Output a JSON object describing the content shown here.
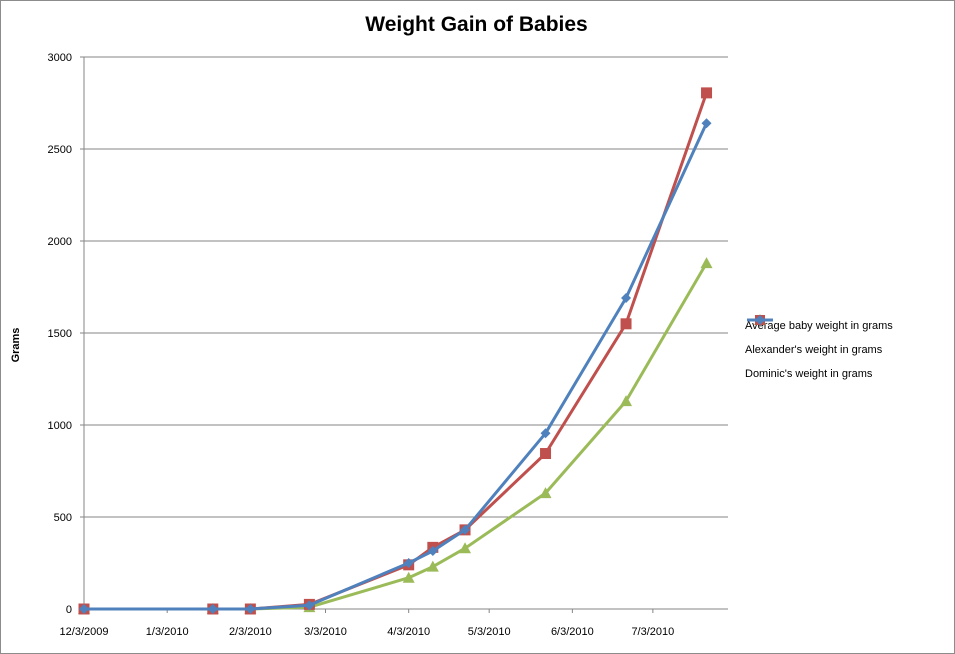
{
  "chart_data": {
    "type": "line",
    "title": "Weight Gain of Babies",
    "xlabel": "",
    "ylabel": "Grams",
    "ylim": [
      0,
      3000
    ],
    "y_ticks": [
      0,
      500,
      1000,
      1500,
      2000,
      2500,
      3000
    ],
    "x_ticks": [
      "12/3/2009",
      "1/3/2010",
      "2/3/2010",
      "3/3/2010",
      "4/3/2010",
      "5/3/2010",
      "6/3/2010",
      "7/3/2010"
    ],
    "x_range": [
      "2009-12-03",
      "2010-07-31"
    ],
    "grid": "horizontal",
    "legend_position": "right",
    "series": [
      {
        "name": "Average baby weight in grams",
        "color": "#9bbb59",
        "marker": "triangle",
        "points": [
          [
            "2009-12-03",
            0
          ],
          [
            "2010-01-20",
            0
          ],
          [
            "2010-02-03",
            0
          ],
          [
            "2010-02-25",
            10
          ],
          [
            "2010-04-03",
            170
          ],
          [
            "2010-04-12",
            230
          ],
          [
            "2010-04-24",
            330
          ],
          [
            "2010-05-24",
            630
          ],
          [
            "2010-06-23",
            1130
          ],
          [
            "2010-07-23",
            1880
          ]
        ]
      },
      {
        "name": "Alexander's weight in grams",
        "color": "#c0504d",
        "marker": "square",
        "points": [
          [
            "2009-12-03",
            0
          ],
          [
            "2010-01-20",
            0
          ],
          [
            "2010-02-03",
            0
          ],
          [
            "2010-02-25",
            25
          ],
          [
            "2010-04-03",
            240
          ],
          [
            "2010-04-12",
            335
          ],
          [
            "2010-04-24",
            430
          ],
          [
            "2010-05-24",
            845
          ],
          [
            "2010-06-23",
            1550
          ],
          [
            "2010-07-23",
            2805
          ]
        ]
      },
      {
        "name": "Dominic's weight in grams",
        "color": "#4f81bd",
        "marker": "diamond",
        "points": [
          [
            "2009-12-03",
            0
          ],
          [
            "2010-01-20",
            0
          ],
          [
            "2010-02-03",
            0
          ],
          [
            "2010-02-25",
            20
          ],
          [
            "2010-04-03",
            250
          ],
          [
            "2010-04-12",
            315
          ],
          [
            "2010-04-24",
            430
          ],
          [
            "2010-05-24",
            955
          ],
          [
            "2010-06-23",
            1690
          ],
          [
            "2010-07-23",
            2640
          ]
        ]
      }
    ]
  }
}
